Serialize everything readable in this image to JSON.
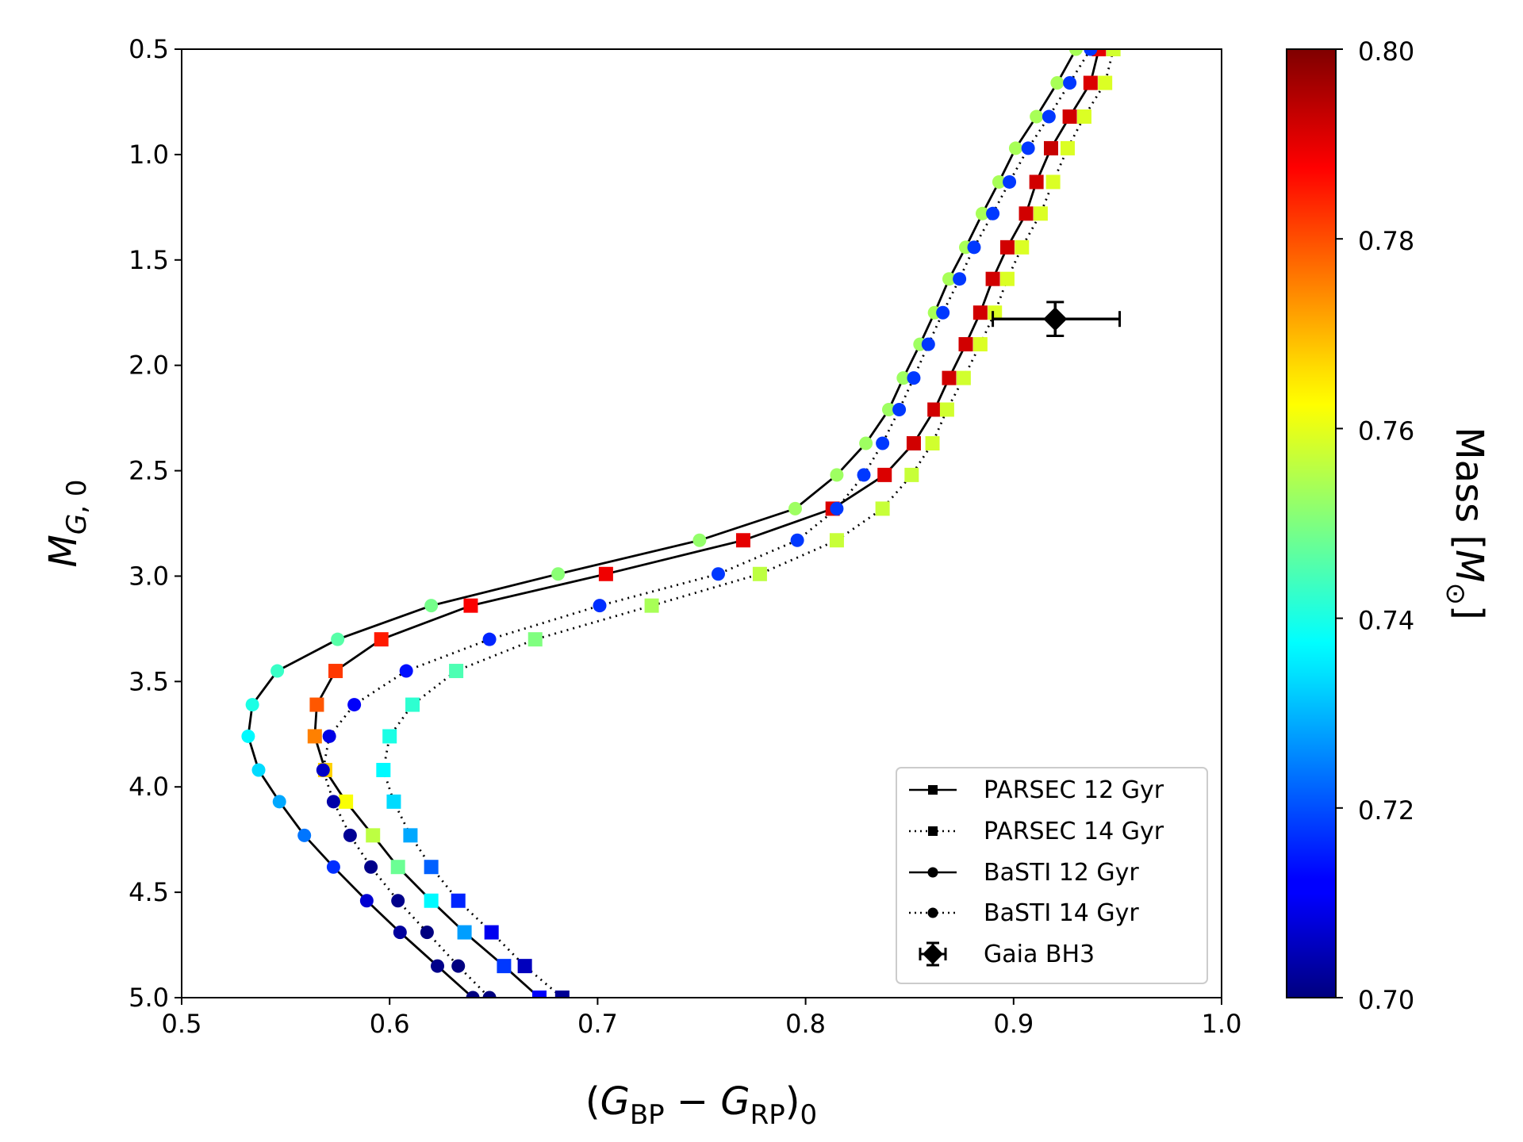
{
  "chart_data": {
    "type": "scatter",
    "title": "",
    "xlabel": "(G_BP − G_RP)_0",
    "ylabel": "M_G,0",
    "xlim": [
      0.5,
      1.0
    ],
    "ylim": [
      5.0,
      0.5
    ],
    "y_inverted": true,
    "grid": false,
    "x_ticks": [
      "0.5",
      "0.6",
      "0.7",
      "0.8",
      "0.9",
      "1.0"
    ],
    "y_ticks": [
      "0.5",
      "1.0",
      "1.5",
      "2.0",
      "2.5",
      "3.0",
      "3.5",
      "4.0",
      "4.5",
      "5.0"
    ],
    "colorbar": {
      "label": "Mass [M_⊙]",
      "range": [
        0.7,
        0.8
      ],
      "ticks": [
        "0.70",
        "0.72",
        "0.74",
        "0.76",
        "0.78",
        "0.80"
      ],
      "colormap": "jet"
    },
    "legend": {
      "position": "lower-right",
      "entries": [
        "PARSEC 12 Gyr",
        "PARSEC 14 Gyr",
        "BaSTI 12 Gyr",
        "BaSTI 14 Gyr",
        "Gaia BH3"
      ]
    },
    "series": [
      {
        "name": "PARSEC 12 Gyr",
        "marker": "square",
        "line": "solid",
        "points": [
          {
            "x": 0.941,
            "y": 0.5,
            "m": 0.79
          },
          {
            "x": 0.937,
            "y": 0.66,
            "m": 0.791
          },
          {
            "x": 0.927,
            "y": 0.82,
            "m": 0.792
          },
          {
            "x": 0.918,
            "y": 0.97,
            "m": 0.793
          },
          {
            "x": 0.911,
            "y": 1.13,
            "m": 0.792
          },
          {
            "x": 0.906,
            "y": 1.28,
            "m": 0.792
          },
          {
            "x": 0.897,
            "y": 1.44,
            "m": 0.792
          },
          {
            "x": 0.89,
            "y": 1.59,
            "m": 0.792
          },
          {
            "x": 0.884,
            "y": 1.75,
            "m": 0.792
          },
          {
            "x": 0.877,
            "y": 1.9,
            "m": 0.792
          },
          {
            "x": 0.869,
            "y": 2.06,
            "m": 0.792
          },
          {
            "x": 0.862,
            "y": 2.21,
            "m": 0.792
          },
          {
            "x": 0.852,
            "y": 2.37,
            "m": 0.792
          },
          {
            "x": 0.838,
            "y": 2.52,
            "m": 0.791
          },
          {
            "x": 0.813,
            "y": 2.68,
            "m": 0.791
          },
          {
            "x": 0.77,
            "y": 2.83,
            "m": 0.79
          },
          {
            "x": 0.704,
            "y": 2.99,
            "m": 0.789
          },
          {
            "x": 0.639,
            "y": 3.14,
            "m": 0.788
          },
          {
            "x": 0.596,
            "y": 3.3,
            "m": 0.785
          },
          {
            "x": 0.574,
            "y": 3.45,
            "m": 0.782
          },
          {
            "x": 0.565,
            "y": 3.61,
            "m": 0.779
          },
          {
            "x": 0.564,
            "y": 3.76,
            "m": 0.775
          },
          {
            "x": 0.569,
            "y": 3.92,
            "m": 0.767
          },
          {
            "x": 0.579,
            "y": 4.07,
            "m": 0.762
          },
          {
            "x": 0.592,
            "y": 4.23,
            "m": 0.756
          },
          {
            "x": 0.604,
            "y": 4.38,
            "m": 0.748
          },
          {
            "x": 0.62,
            "y": 4.54,
            "m": 0.737
          },
          {
            "x": 0.636,
            "y": 4.69,
            "m": 0.728
          },
          {
            "x": 0.655,
            "y": 4.85,
            "m": 0.718
          },
          {
            "x": 0.672,
            "y": 5.0,
            "m": 0.712
          }
        ]
      },
      {
        "name": "PARSEC 14 Gyr",
        "marker": "square",
        "line": "dotted",
        "points": [
          {
            "x": 0.948,
            "y": 0.5,
            "m": 0.758
          },
          {
            "x": 0.944,
            "y": 0.66,
            "m": 0.759
          },
          {
            "x": 0.934,
            "y": 0.82,
            "m": 0.759
          },
          {
            "x": 0.926,
            "y": 0.97,
            "m": 0.759
          },
          {
            "x": 0.919,
            "y": 1.13,
            "m": 0.759
          },
          {
            "x": 0.913,
            "y": 1.28,
            "m": 0.759
          },
          {
            "x": 0.904,
            "y": 1.44,
            "m": 0.759
          },
          {
            "x": 0.897,
            "y": 1.59,
            "m": 0.759
          },
          {
            "x": 0.891,
            "y": 1.75,
            "m": 0.759
          },
          {
            "x": 0.884,
            "y": 1.9,
            "m": 0.759
          },
          {
            "x": 0.876,
            "y": 2.06,
            "m": 0.758
          },
          {
            "x": 0.868,
            "y": 2.21,
            "m": 0.758
          },
          {
            "x": 0.861,
            "y": 2.37,
            "m": 0.758
          },
          {
            "x": 0.851,
            "y": 2.52,
            "m": 0.757
          },
          {
            "x": 0.837,
            "y": 2.68,
            "m": 0.757
          },
          {
            "x": 0.815,
            "y": 2.83,
            "m": 0.757
          },
          {
            "x": 0.778,
            "y": 2.99,
            "m": 0.756
          },
          {
            "x": 0.726,
            "y": 3.14,
            "m": 0.754
          },
          {
            "x": 0.67,
            "y": 3.3,
            "m": 0.75
          },
          {
            "x": 0.632,
            "y": 3.45,
            "m": 0.745
          },
          {
            "x": 0.611,
            "y": 3.61,
            "m": 0.742
          },
          {
            "x": 0.6,
            "y": 3.76,
            "m": 0.74
          },
          {
            "x": 0.597,
            "y": 3.92,
            "m": 0.737
          },
          {
            "x": 0.602,
            "y": 4.07,
            "m": 0.734
          },
          {
            "x": 0.61,
            "y": 4.23,
            "m": 0.729
          },
          {
            "x": 0.62,
            "y": 4.38,
            "m": 0.722
          },
          {
            "x": 0.633,
            "y": 4.54,
            "m": 0.716
          },
          {
            "x": 0.649,
            "y": 4.69,
            "m": 0.711
          },
          {
            "x": 0.665,
            "y": 4.85,
            "m": 0.706
          },
          {
            "x": 0.683,
            "y": 5.0,
            "m": 0.702
          }
        ]
      },
      {
        "name": "BaSTI 12 Gyr",
        "marker": "circle",
        "line": "solid",
        "points": [
          {
            "x": 0.93,
            "y": 0.5,
            "m": 0.754
          },
          {
            "x": 0.921,
            "y": 0.66,
            "m": 0.754
          },
          {
            "x": 0.911,
            "y": 0.82,
            "m": 0.754
          },
          {
            "x": 0.901,
            "y": 0.97,
            "m": 0.754
          },
          {
            "x": 0.893,
            "y": 1.13,
            "m": 0.754
          },
          {
            "x": 0.885,
            "y": 1.28,
            "m": 0.754
          },
          {
            "x": 0.877,
            "y": 1.44,
            "m": 0.754
          },
          {
            "x": 0.869,
            "y": 1.59,
            "m": 0.754
          },
          {
            "x": 0.862,
            "y": 1.75,
            "m": 0.754
          },
          {
            "x": 0.855,
            "y": 1.9,
            "m": 0.753
          },
          {
            "x": 0.847,
            "y": 2.06,
            "m": 0.753
          },
          {
            "x": 0.84,
            "y": 2.21,
            "m": 0.753
          },
          {
            "x": 0.829,
            "y": 2.37,
            "m": 0.753
          },
          {
            "x": 0.815,
            "y": 2.52,
            "m": 0.753
          },
          {
            "x": 0.795,
            "y": 2.68,
            "m": 0.753
          },
          {
            "x": 0.749,
            "y": 2.83,
            "m": 0.752
          },
          {
            "x": 0.681,
            "y": 2.99,
            "m": 0.751
          },
          {
            "x": 0.62,
            "y": 3.14,
            "m": 0.749
          },
          {
            "x": 0.575,
            "y": 3.3,
            "m": 0.746
          },
          {
            "x": 0.546,
            "y": 3.45,
            "m": 0.743
          },
          {
            "x": 0.534,
            "y": 3.61,
            "m": 0.74
          },
          {
            "x": 0.532,
            "y": 3.76,
            "m": 0.737
          },
          {
            "x": 0.537,
            "y": 3.92,
            "m": 0.734
          },
          {
            "x": 0.547,
            "y": 4.07,
            "m": 0.729
          },
          {
            "x": 0.559,
            "y": 4.23,
            "m": 0.724
          },
          {
            "x": 0.573,
            "y": 4.38,
            "m": 0.717
          },
          {
            "x": 0.589,
            "y": 4.54,
            "m": 0.708
          },
          {
            "x": 0.605,
            "y": 4.69,
            "m": 0.703
          },
          {
            "x": 0.623,
            "y": 4.85,
            "m": 0.701
          },
          {
            "x": 0.64,
            "y": 5.0,
            "m": 0.7
          }
        ]
      },
      {
        "name": "BaSTI 14 Gyr",
        "marker": "circle",
        "line": "dotted",
        "points": [
          {
            "x": 0.937,
            "y": 0.5,
            "m": 0.718
          },
          {
            "x": 0.927,
            "y": 0.66,
            "m": 0.718
          },
          {
            "x": 0.917,
            "y": 0.82,
            "m": 0.718
          },
          {
            "x": 0.907,
            "y": 0.97,
            "m": 0.718
          },
          {
            "x": 0.898,
            "y": 1.13,
            "m": 0.718
          },
          {
            "x": 0.89,
            "y": 1.28,
            "m": 0.718
          },
          {
            "x": 0.881,
            "y": 1.44,
            "m": 0.718
          },
          {
            "x": 0.874,
            "y": 1.59,
            "m": 0.718
          },
          {
            "x": 0.866,
            "y": 1.75,
            "m": 0.718
          },
          {
            "x": 0.859,
            "y": 1.9,
            "m": 0.718
          },
          {
            "x": 0.852,
            "y": 2.06,
            "m": 0.718
          },
          {
            "x": 0.845,
            "y": 2.21,
            "m": 0.718
          },
          {
            "x": 0.837,
            "y": 2.37,
            "m": 0.718
          },
          {
            "x": 0.828,
            "y": 2.52,
            "m": 0.718
          },
          {
            "x": 0.815,
            "y": 2.68,
            "m": 0.718
          },
          {
            "x": 0.796,
            "y": 2.83,
            "m": 0.718
          },
          {
            "x": 0.758,
            "y": 2.99,
            "m": 0.718
          },
          {
            "x": 0.701,
            "y": 3.14,
            "m": 0.717
          },
          {
            "x": 0.648,
            "y": 3.3,
            "m": 0.716
          },
          {
            "x": 0.608,
            "y": 3.45,
            "m": 0.714
          },
          {
            "x": 0.583,
            "y": 3.61,
            "m": 0.712
          },
          {
            "x": 0.571,
            "y": 3.76,
            "m": 0.71
          },
          {
            "x": 0.568,
            "y": 3.92,
            "m": 0.707
          },
          {
            "x": 0.573,
            "y": 4.07,
            "m": 0.704
          },
          {
            "x": 0.581,
            "y": 4.23,
            "m": 0.702
          },
          {
            "x": 0.591,
            "y": 4.38,
            "m": 0.701
          },
          {
            "x": 0.604,
            "y": 4.54,
            "m": 0.701
          },
          {
            "x": 0.618,
            "y": 4.69,
            "m": 0.7
          },
          {
            "x": 0.633,
            "y": 4.85,
            "m": 0.7
          },
          {
            "x": 0.648,
            "y": 5.0,
            "m": 0.7
          }
        ]
      }
    ],
    "gaia_bh3": {
      "name": "Gaia BH3",
      "marker": "diamond",
      "x": 0.92,
      "y": 1.78,
      "x_err": [
        0.03,
        0.031
      ],
      "y_err": [
        0.08,
        0.08
      ]
    }
  }
}
